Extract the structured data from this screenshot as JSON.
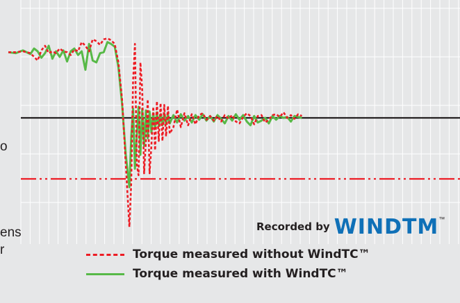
{
  "chart_data": {
    "type": "line",
    "title": "",
    "xlabel": "",
    "ylabel": "",
    "grid": true,
    "legend_placement": "bottom",
    "xlim": [
      0,
      100
    ],
    "ylim": [
      -1.2,
      1.2
    ],
    "reference_lines": [
      {
        "y": 0,
        "style": "solid",
        "color": "#231f20"
      },
      {
        "y": -0.66,
        "style": "dash-dot",
        "color": "#ed1c24"
      }
    ],
    "series": [
      {
        "name": "Torque measured without WindTC™",
        "color": "#ed1c24",
        "style": "dotted",
        "x": [
          0,
          2,
          4,
          6,
          7,
          8,
          9,
          10,
          11,
          12,
          13,
          14,
          15,
          16,
          17,
          18,
          19,
          20,
          21,
          22,
          23,
          24,
          25,
          26,
          27,
          28,
          29,
          30,
          31,
          32,
          33,
          33.5,
          34,
          34.5,
          35,
          35.5,
          36,
          36.5,
          37,
          37.5,
          38,
          38.5,
          39,
          39.5,
          40,
          40.5,
          41,
          41.5,
          42,
          42.5,
          43,
          43.5,
          44,
          45,
          46,
          47,
          48,
          49,
          50,
          51,
          52,
          53,
          54,
          55,
          56,
          57,
          58,
          59,
          60,
          61,
          62,
          63,
          64,
          65,
          66,
          67,
          68,
          69,
          70,
          71,
          72,
          73,
          74,
          75,
          76,
          77,
          78,
          79,
          80
        ],
        "y": [
          0.71,
          0.71,
          0.72,
          0.7,
          0.66,
          0.62,
          0.73,
          0.78,
          0.7,
          0.72,
          0.7,
          0.75,
          0.72,
          0.71,
          0.68,
          0.74,
          0.72,
          0.82,
          0.78,
          0.72,
          0.85,
          0.83,
          0.79,
          0.85,
          0.86,
          0.84,
          0.8,
          0.6,
          0.2,
          -0.5,
          -1.18,
          -0.7,
          0.4,
          0.8,
          -0.5,
          -0.62,
          0.6,
          0.3,
          -0.6,
          -0.25,
          0.2,
          -0.6,
          -0.3,
          0.12,
          -0.35,
          0.18,
          -0.25,
          0.16,
          -0.25,
          0.14,
          -0.2,
          0.13,
          -0.17,
          -0.1,
          0.09,
          -0.1,
          0.05,
          -0.08,
          0.04,
          -0.07,
          0.03,
          0.05,
          -0.02,
          0.02,
          -0.03,
          0.02,
          -0.04,
          0.03,
          -0.01,
          0.03,
          -0.04,
          -0.06,
          0.01,
          0.05,
          0.02,
          -0.07,
          0.02,
          0.03,
          -0.05,
          -0.02,
          0.03,
          0.04,
          0.01,
          0.06,
          0.0,
          0.03,
          -0.01,
          0.04,
          0.02
        ]
      },
      {
        "name": "Torque measured with WindTC™",
        "color": "#57b947",
        "style": "solid",
        "x": [
          0,
          2,
          4,
          6,
          7,
          8,
          9,
          10,
          11,
          12,
          13,
          14,
          15,
          16,
          17,
          18,
          19,
          20,
          21,
          22,
          23,
          24,
          25,
          26,
          27,
          28,
          29,
          30,
          31,
          32,
          33,
          33.5,
          34,
          34.5,
          35,
          35.5,
          36,
          36.5,
          37,
          37.5,
          38,
          38.5,
          39,
          39.5,
          40,
          40.5,
          41,
          41.5,
          42,
          42.5,
          43,
          43.5,
          44,
          45,
          46,
          47,
          48,
          49,
          50,
          51,
          52,
          53,
          54,
          55,
          56,
          57,
          58,
          59,
          60,
          61,
          62,
          63,
          64,
          65,
          66,
          67,
          68,
          69,
          70,
          71,
          72,
          73,
          74,
          75,
          76,
          77,
          78,
          79,
          80
        ],
        "y": [
          0.71,
          0.7,
          0.73,
          0.69,
          0.75,
          0.72,
          0.65,
          0.7,
          0.78,
          0.64,
          0.72,
          0.66,
          0.73,
          0.61,
          0.72,
          0.75,
          0.68,
          0.72,
          0.52,
          0.8,
          0.62,
          0.6,
          0.7,
          0.71,
          0.82,
          0.8,
          0.77,
          0.55,
          0.15,
          -0.4,
          -0.75,
          -0.2,
          0.1,
          -0.55,
          -0.2,
          0.12,
          -0.4,
          0.1,
          -0.3,
          0.08,
          -0.22,
          0.07,
          -0.16,
          0.05,
          -0.12,
          0.06,
          -0.09,
          0.04,
          -0.08,
          0.05,
          -0.07,
          0.04,
          -0.06,
          0.03,
          -0.05,
          0.04,
          -0.03,
          0.02,
          -0.05,
          0.03,
          -0.02,
          0.04,
          -0.03,
          0.02,
          -0.04,
          0.03,
          -0.01,
          -0.06,
          0.02,
          -0.03,
          0.04,
          -0.02,
          0.03,
          -0.04,
          -0.08,
          0.02,
          -0.05,
          -0.03,
          0.0,
          -0.06,
          0.02,
          -0.02,
          0.02,
          0.0,
          0.01,
          -0.04,
          0.02,
          0.01,
          0.0
        ]
      }
    ]
  },
  "side_text": [
    {
      "id": "frag1",
      "text": "o"
    },
    {
      "id": "frag2",
      "text": "ens"
    },
    {
      "id": "frag3",
      "text": "r"
    }
  ],
  "watermark": {
    "label": "Recorded by",
    "logo": "WINDTM",
    "tm": "™"
  },
  "legend": [
    {
      "label": "Torque measured without WindTC™",
      "color": "#ed1c24",
      "style": "dotted"
    },
    {
      "label": "Torque measured with WindTC™",
      "color": "#57b947",
      "style": "solid"
    }
  ]
}
